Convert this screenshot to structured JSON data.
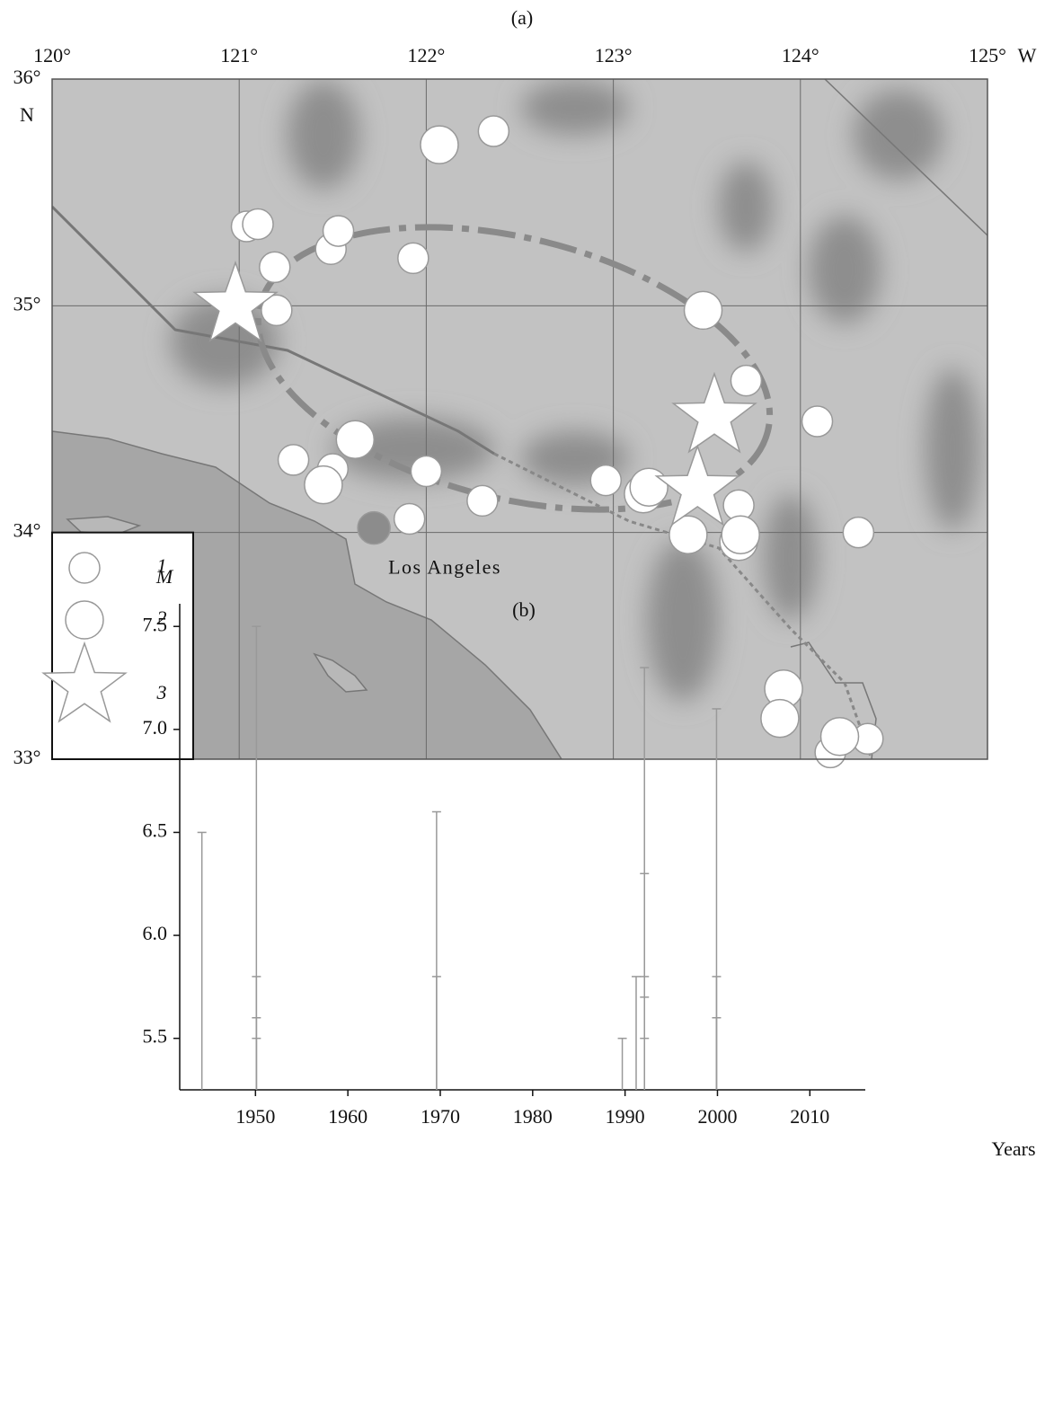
{
  "chart_data": [
    {
      "type": "scatter",
      "title": "(a)",
      "xlim": [
        120,
        125
      ],
      "ylim": [
        33,
        36
      ],
      "xticks": [
        {
          "value": 120,
          "label": "120°"
        },
        {
          "value": 121,
          "label": "121°"
        },
        {
          "value": 122,
          "label": "122°"
        },
        {
          "value": 123,
          "label": "123°"
        },
        {
          "value": 124,
          "label": "124°"
        },
        {
          "value": 125,
          "label": "125°"
        }
      ],
      "yticks": [
        {
          "value": 33,
          "label": "33°"
        },
        {
          "value": 34,
          "label": "34°"
        },
        {
          "value": 35,
          "label": "35°"
        },
        {
          "value": 36,
          "label": "36°"
        }
      ],
      "xunit": "W",
      "yunit": "N",
      "grid": true,
      "legend": "lower left",
      "series": [
        {
          "name": "1",
          "marker": "circle",
          "color": "#ffffff",
          "x": [
            122.36,
            121.04,
            121.1,
            121.49,
            121.53,
            121.19,
            121.93,
            121.2,
            123.71,
            124.09,
            121.29,
            121.5,
            122.0,
            121.91,
            122.3,
            122.96,
            123.67,
            124.31,
            124.36,
            124.16
          ],
          "y": [
            35.77,
            35.35,
            35.36,
            35.25,
            35.33,
            35.17,
            35.21,
            34.98,
            34.67,
            34.49,
            34.32,
            34.28,
            34.27,
            34.06,
            34.14,
            34.23,
            34.12,
            34.0,
            33.09,
            33.03
          ]
        },
        {
          "name": "2",
          "marker": "circle",
          "color": "#ffffff",
          "x": [
            122.07,
            123.48,
            121.45,
            121.62,
            123.16,
            123.19,
            123.4,
            123.67,
            123.68,
            123.91,
            123.89,
            124.21
          ],
          "y": [
            35.71,
            34.98,
            34.21,
            34.41,
            34.17,
            34.2,
            33.99,
            33.96,
            33.99,
            33.31,
            33.18,
            33.1
          ]
        },
        {
          "name": "3",
          "marker": "star",
          "color": "#ffffff",
          "x": [
            120.98,
            123.54,
            123.45
          ],
          "y": [
            35.0,
            34.51,
            34.19
          ]
        }
      ],
      "city": {
        "label": "Los Angeles",
        "x": 121.72,
        "y": 34.02,
        "color": "#8c8c8c"
      }
    },
    {
      "type": "stem",
      "title": "(b)",
      "xlabel": "Years",
      "ylabel": "M",
      "color": "#999999",
      "xlim": [
        1941.8,
        2016
      ],
      "ylim": [
        5.25,
        7.61
      ],
      "xticks": [
        1950,
        1960,
        1970,
        1980,
        1990,
        2000,
        2010
      ],
      "yticks": [
        5.5,
        {
          "value": 6,
          "label": "6.0"
        },
        6.5,
        {
          "value": 7,
          "label": "7.0"
        },
        7.5
      ],
      "x": [
        1944.2,
        1950.1,
        1950.1,
        1950.1,
        1950.1,
        1969.6,
        1969.6,
        1989.7,
        1991.2,
        1992.1,
        1992.1,
        1992.1,
        1992.1,
        1992.1,
        1999.9,
        1999.9,
        1999.9
      ],
      "values": [
        6.5,
        7.5,
        5.8,
        5.6,
        5.5,
        6.6,
        5.8,
        5.5,
        5.8,
        7.3,
        6.3,
        5.8,
        5.7,
        5.5,
        7.1,
        5.8,
        5.6
      ]
    }
  ]
}
